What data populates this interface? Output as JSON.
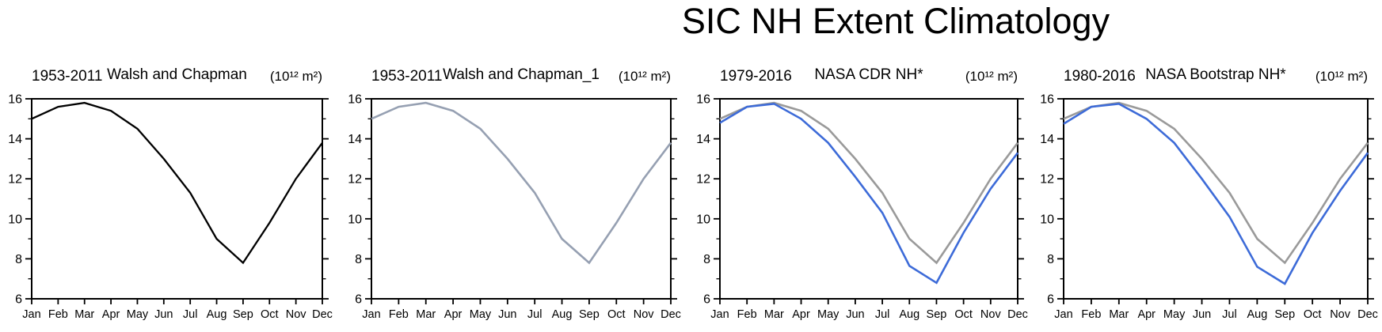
{
  "page_title": "SIC NH Extent Climatology",
  "colors": {
    "background": "#ffffff",
    "axis": "#000000",
    "walsh_black": "#000000",
    "walsh_gray_blue": "#96a0b2",
    "reference_gray": "#9a9a9a",
    "nasa_blue": "#3d6bd8"
  },
  "chart_data": [
    {
      "type": "line",
      "period": "1953-2011",
      "title": "Walsh and Chapman",
      "units": "(10¹² m²)",
      "xlabel": "",
      "ylabel": "",
      "categories": [
        "Jan",
        "Feb",
        "Mar",
        "Apr",
        "May",
        "Jun",
        "Jul",
        "Aug",
        "Sep",
        "Oct",
        "Nov",
        "Dec"
      ],
      "ylim": [
        6,
        16
      ],
      "yticks_major": [
        6,
        8,
        10,
        12,
        14,
        16
      ],
      "yticks_minor": [
        7,
        9,
        11,
        13,
        15
      ],
      "grid": false,
      "legend": "none",
      "series": [
        {
          "name": "walsh-and-chapman",
          "color": "#000000",
          "width": 2.3,
          "values": [
            15.0,
            15.6,
            15.8,
            15.4,
            14.5,
            13.0,
            11.3,
            9.0,
            7.8,
            9.8,
            12.0,
            13.8
          ]
        }
      ]
    },
    {
      "type": "line",
      "period": "1953-2011",
      "title": "Walsh and Chapman_1",
      "units": "(10¹² m²)",
      "xlabel": "",
      "ylabel": "",
      "categories": [
        "Jan",
        "Feb",
        "Mar",
        "Apr",
        "May",
        "Jun",
        "Jul",
        "Aug",
        "Sep",
        "Oct",
        "Nov",
        "Dec"
      ],
      "ylim": [
        6,
        16
      ],
      "yticks_major": [
        6,
        8,
        10,
        12,
        14,
        16
      ],
      "yticks_minor": [
        7,
        9,
        11,
        13,
        15
      ],
      "grid": false,
      "legend": "none",
      "series": [
        {
          "name": "walsh-and-chapman-1",
          "color": "#96a0b2",
          "width": 2.6,
          "values": [
            15.0,
            15.6,
            15.8,
            15.4,
            14.5,
            13.0,
            11.3,
            9.0,
            7.8,
            9.8,
            12.0,
            13.8
          ]
        }
      ]
    },
    {
      "type": "line",
      "period": "1979-2016",
      "title": "NASA CDR NH*",
      "units": "(10¹² m²)",
      "xlabel": "",
      "ylabel": "",
      "categories": [
        "Jan",
        "Feb",
        "Mar",
        "Apr",
        "May",
        "Jun",
        "Jul",
        "Aug",
        "Sep",
        "Oct",
        "Nov",
        "Dec"
      ],
      "ylim": [
        6,
        16
      ],
      "yticks_major": [
        6,
        8,
        10,
        12,
        14,
        16
      ],
      "yticks_minor": [
        7,
        9,
        11,
        13,
        15
      ],
      "grid": false,
      "legend": "none",
      "series": [
        {
          "name": "reference-gray",
          "color": "#9a9a9a",
          "width": 2.6,
          "values": [
            15.0,
            15.6,
            15.8,
            15.4,
            14.5,
            13.0,
            11.3,
            9.0,
            7.8,
            9.8,
            12.0,
            13.8
          ]
        },
        {
          "name": "nasa-cdr-nh",
          "color": "#3d6bd8",
          "width": 2.6,
          "values": [
            14.8,
            15.6,
            15.75,
            15.0,
            13.8,
            12.1,
            10.3,
            7.65,
            6.8,
            9.3,
            11.5,
            13.3
          ]
        }
      ]
    },
    {
      "type": "line",
      "period": "1980-2016",
      "title": "NASA Bootstrap NH*",
      "units": "(10¹² m²)",
      "xlabel": "",
      "ylabel": "",
      "categories": [
        "Jan",
        "Feb",
        "Mar",
        "Apr",
        "May",
        "Jun",
        "Jul",
        "Aug",
        "Sep",
        "Oct",
        "Nov",
        "Dec"
      ],
      "ylim": [
        6,
        16
      ],
      "yticks_major": [
        6,
        8,
        10,
        12,
        14,
        16
      ],
      "yticks_minor": [
        7,
        9,
        11,
        13,
        15
      ],
      "grid": false,
      "legend": "none",
      "series": [
        {
          "name": "reference-gray",
          "color": "#9a9a9a",
          "width": 2.6,
          "values": [
            15.0,
            15.6,
            15.8,
            15.4,
            14.5,
            13.0,
            11.3,
            9.0,
            7.8,
            9.8,
            12.0,
            13.8
          ]
        },
        {
          "name": "nasa-bootstrap-nh",
          "color": "#3d6bd8",
          "width": 2.6,
          "values": [
            14.75,
            15.6,
            15.75,
            15.0,
            13.8,
            12.0,
            10.1,
            7.6,
            6.75,
            9.3,
            11.4,
            13.3
          ]
        }
      ]
    }
  ]
}
